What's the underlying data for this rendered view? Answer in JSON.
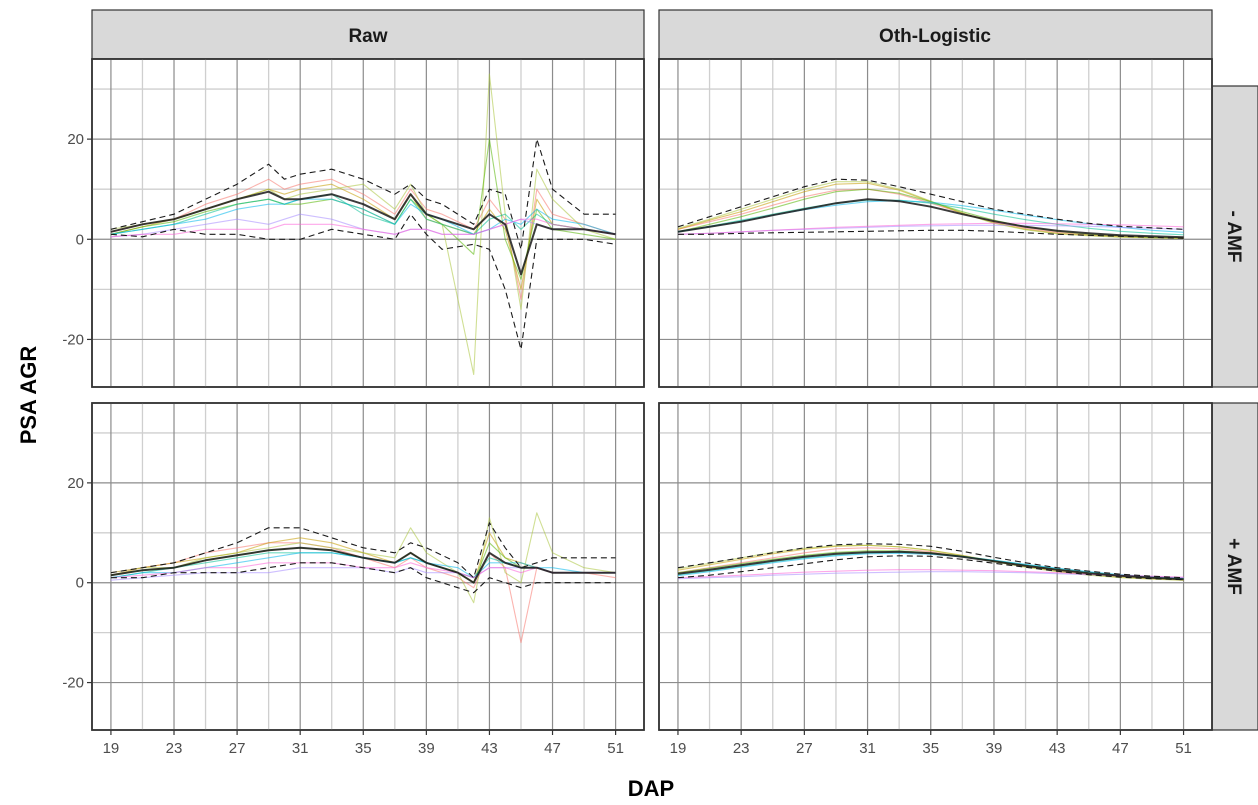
{
  "chart_data": {
    "type": "line",
    "facet_columns": [
      "Raw",
      "Oth-Logistic"
    ],
    "facet_rows": [
      "- AMF",
      "+ AMF"
    ],
    "xlabel": "DAP",
    "ylabel": "PSA AGR",
    "x_ticks": [
      19,
      23,
      27,
      31,
      35,
      39,
      43,
      47,
      51
    ],
    "y_ticks": [
      -20,
      0,
      20
    ],
    "xlim": [
      17.8,
      52.8
    ],
    "ylim": [
      -29.5,
      36
    ],
    "grid": true,
    "legend": "none",
    "colors": {
      "strip_fill": "#d9d9d9",
      "mean_line": "#1a1a1a",
      "envelope": "#1a1a1a",
      "series_palette": [
        "#f8766d",
        "#c49a00",
        "#53b400",
        "#00c094",
        "#00b6eb",
        "#a58aff",
        "#fb61d7",
        "#aac43c"
      ]
    },
    "panels": [
      {
        "col": "Raw",
        "row": "- AMF",
        "x": [
          19,
          21,
          23,
          25,
          27,
          29,
          30,
          31,
          33,
          35,
          37,
          38,
          39,
          40,
          42,
          43,
          44,
          45,
          46,
          47,
          49,
          51
        ],
        "mean": [
          1.5,
          3,
          4,
          6,
          8,
          9.5,
          8,
          8,
          9,
          7,
          4,
          9,
          5,
          4,
          2,
          5,
          3,
          -7,
          3,
          2,
          2,
          1
        ],
        "upper": [
          2,
          3.5,
          5,
          8,
          11,
          15,
          12,
          13,
          14,
          12,
          9,
          11,
          8,
          7,
          3,
          10,
          9,
          -2,
          20,
          10,
          5,
          5
        ],
        "lower": [
          1,
          0.5,
          2,
          1,
          1,
          0,
          0,
          0,
          2,
          1,
          0,
          5,
          1,
          -2,
          -1,
          -2,
          -10,
          -22,
          0,
          0,
          0,
          -1
        ],
        "curves": [
          {
            "color": "#f8766d",
            "y": [
              1.5,
              3,
              4,
              7,
              9,
              12,
              10,
              11,
              12,
              9,
              5,
              10,
              6,
              5,
              2,
              8,
              4,
              -12,
              10,
              5,
              3,
              1
            ]
          },
          {
            "color": "#c49a00",
            "y": [
              1,
              2.5,
              4,
              6,
              8,
              10,
              9,
              10,
              11,
              8,
              4,
              9,
              4,
              3,
              1,
              6,
              2,
              -10,
              8,
              3,
              2,
              1
            ]
          },
          {
            "color": "#aac43c",
            "y": [
              2,
              3,
              4,
              6,
              8,
              10,
              8,
              9,
              10,
              11,
              6,
              11,
              5,
              3,
              -27,
              33,
              5,
              -14,
              14,
              8,
              2,
              0
            ]
          },
          {
            "color": "#53b400",
            "y": [
              1,
              2.5,
              3.5,
              5.5,
              7,
              8,
              7,
              7,
              8,
              6,
              3,
              8,
              5,
              3,
              -3,
              20,
              0,
              -8,
              6,
              2,
              1,
              0
            ]
          },
          {
            "color": "#00c094",
            "y": [
              1,
              2,
              3,
              5,
              7,
              8,
              7,
              8,
              9,
              5,
              3,
              8,
              4,
              3,
              1,
              4,
              5,
              2,
              5,
              3,
              2,
              1
            ]
          },
          {
            "color": "#00b6eb",
            "y": [
              1,
              2,
              3,
              4,
              6,
              7,
              7,
              8,
              8,
              6,
              3,
              7,
              5,
              4,
              1,
              2,
              4,
              3,
              6,
              4,
              3,
              1
            ]
          },
          {
            "color": "#a58aff",
            "y": [
              0.5,
              1,
              2,
              3,
              4,
              3,
              4,
              5,
              4,
              2,
              1,
              2,
              2,
              1,
              1,
              2,
              3,
              4,
              3,
              2,
              2,
              1
            ]
          },
          {
            "color": "#fb61d7",
            "y": [
              0.5,
              1,
              1,
              2,
              2,
              2,
              3,
              3,
              3,
              2,
              1,
              2,
              2,
              1,
              1,
              2,
              3,
              4,
              4,
              3,
              2,
              1
            ]
          }
        ]
      },
      {
        "col": "Oth-Logistic",
        "row": "- AMF",
        "x": [
          19,
          21,
          23,
          25,
          27,
          29,
          31,
          33,
          35,
          37,
          39,
          41,
          43,
          45,
          47,
          49,
          51
        ],
        "mean": [
          1.5,
          2.5,
          3.5,
          4.8,
          6,
          7.2,
          8,
          7.6,
          6.5,
          5,
          3.6,
          2.5,
          1.7,
          1.2,
          0.8,
          0.6,
          0.4
        ],
        "upper": [
          2.5,
          4.5,
          6.5,
          8.5,
          10.5,
          12,
          11.8,
          10.5,
          9,
          7.5,
          6,
          5,
          4,
          3.2,
          2.6,
          2.3,
          2
        ],
        "lower": [
          1,
          1,
          1.2,
          1.3,
          1.4,
          1.5,
          1.6,
          1.7,
          1.8,
          1.8,
          1.6,
          1.3,
          1,
          0.8,
          0.6,
          0.4,
          0.2
        ],
        "curves": [
          {
            "color": "#f8766d",
            "y": [
              2,
              3.5,
              5,
              6.8,
              8.5,
              9.8,
              10,
              9,
              7.2,
              5.2,
              3.5,
              2.2,
              1.4,
              0.9,
              0.6,
              0.4,
              0.3
            ]
          },
          {
            "color": "#c49a00",
            "y": [
              2,
              3.8,
              5.5,
              7.5,
              9.5,
              11,
              11.2,
              9.8,
              7.5,
              5.2,
              3.3,
              2,
              1.2,
              0.8,
              0.5,
              0.3,
              0.2
            ]
          },
          {
            "color": "#aac43c",
            "y": [
              2.2,
              4,
              6,
              8,
              10,
              11.5,
              11.5,
              10,
              7.6,
              5.2,
              3.2,
              1.9,
              1.1,
              0.7,
              0.4,
              0.3,
              0.2
            ]
          },
          {
            "color": "#53b400",
            "y": [
              1.5,
              3,
              4.5,
              6.2,
              8,
              9.5,
              10,
              9.2,
              7.5,
              5.5,
              3.8,
              2.5,
              1.6,
              1,
              0.7,
              0.4,
              0.3
            ]
          },
          {
            "color": "#00c094",
            "y": [
              1.5,
              2.6,
              3.8,
              5,
              6.2,
              7.2,
              7.8,
              7.8,
              7.2,
              6.2,
              5,
              3.9,
              3,
              2.2,
              1.6,
              1.2,
              0.9
            ]
          },
          {
            "color": "#00b6eb",
            "y": [
              1.5,
              2.5,
              3.6,
              4.8,
              5.9,
              6.8,
              7.5,
              7.7,
              7.4,
              6.7,
              5.8,
              4.8,
              3.9,
              3.1,
              2.4,
              1.8,
              1.4
            ]
          },
          {
            "color": "#a58aff",
            "y": [
              1,
              1.2,
              1.5,
              1.8,
              2,
              2.2,
              2.4,
              2.6,
              2.7,
              2.8,
              2.8,
              2.8,
              2.7,
              2.6,
              2.4,
              2.2,
              2
            ]
          },
          {
            "color": "#fb61d7",
            "y": [
              1,
              1.2,
              1.5,
              1.8,
              2.1,
              2.4,
              2.6,
              2.8,
              3,
              3.1,
              3.2,
              3.2,
              3.1,
              3,
              2.9,
              2.7,
              2.5
            ]
          }
        ]
      },
      {
        "col": "Raw",
        "row": "+ AMF",
        "x": [
          19,
          21,
          23,
          25,
          27,
          29,
          31,
          33,
          35,
          37,
          38,
          39,
          41,
          42,
          43,
          44,
          45,
          46,
          47,
          49,
          51
        ],
        "mean": [
          1.5,
          2.5,
          3,
          4.5,
          5.5,
          6.5,
          7,
          6.5,
          5,
          4,
          6,
          4,
          2,
          0,
          6,
          4,
          3,
          3,
          2,
          2,
          2
        ],
        "upper": [
          2,
          3,
          4,
          6,
          8,
          11,
          11,
          9,
          7,
          6,
          8,
          7,
          4,
          1,
          12,
          7,
          3,
          4,
          5,
          5,
          5
        ],
        "lower": [
          1,
          1,
          2,
          2,
          2,
          3,
          4,
          4,
          3,
          2,
          3,
          1,
          -1,
          -2,
          1,
          0,
          -1,
          0,
          0,
          0,
          0
        ],
        "curves": [
          {
            "color": "#f8766d",
            "y": [
              2,
              3,
              4,
              6,
              7,
              8,
              8,
              7,
              5,
              3,
              5,
              3,
              1,
              -1,
              6,
              3,
              -12,
              3,
              2,
              2,
              1
            ]
          },
          {
            "color": "#c49a00",
            "y": [
              1.5,
              3,
              4,
              5,
              6,
              8,
              9,
              8,
              6,
              4,
              6,
              4,
              2,
              0,
              10,
              5,
              4,
              3,
              2,
              2,
              2
            ]
          },
          {
            "color": "#aac43c",
            "y": [
              2,
              3,
              3,
              5,
              6,
              7,
              8,
              7,
              6,
              5,
              11,
              6,
              2,
              -4,
              13,
              2,
              0,
              14,
              6,
              3,
              2
            ]
          },
          {
            "color": "#53b400",
            "y": [
              1.5,
              2.5,
              3,
              4.5,
              5.5,
              6.5,
              7,
              6.5,
              5,
              4,
              6,
              4,
              2,
              0,
              8,
              5,
              3,
              3,
              2,
              2,
              2
            ]
          },
          {
            "color": "#00c094",
            "y": [
              1,
              2,
              3,
              4,
              5,
              6,
              6,
              6,
              5,
              4,
              5,
              4,
              2,
              1,
              5,
              4,
              3,
              3,
              2,
              2,
              2
            ]
          },
          {
            "color": "#00b6eb",
            "y": [
              1,
              2,
              2,
              3,
              4,
              5,
              6,
              6,
              5,
              4,
              5,
              4,
              3,
              1,
              4,
              4,
              4,
              3,
              3,
              2,
              2
            ]
          },
          {
            "color": "#a58aff",
            "y": [
              0.5,
              1,
              1.5,
              2,
              2,
              2,
              3,
              3,
              3,
              2,
              3,
              2,
              2,
              1,
              3,
              3,
              3,
              3,
              2,
              2,
              2
            ]
          },
          {
            "color": "#fb61d7",
            "y": [
              1,
              1.5,
              2,
              3,
              3,
              4,
              4,
              4,
              3,
              3,
              4,
              3,
              2,
              1,
              3,
              3,
              2,
              3,
              2,
              2,
              2
            ]
          }
        ]
      },
      {
        "col": "Oth-Logistic",
        "row": "+ AMF",
        "x": [
          19,
          21,
          23,
          25,
          27,
          29,
          31,
          33,
          35,
          37,
          39,
          41,
          43,
          45,
          47,
          49,
          51
        ],
        "mean": [
          1.8,
          2.6,
          3.5,
          4.4,
          5.2,
          5.8,
          6.1,
          6.2,
          5.9,
          5.2,
          4.3,
          3.4,
          2.6,
          1.9,
          1.4,
          1,
          0.7
        ],
        "upper": [
          3,
          4,
          5,
          6,
          7,
          7.6,
          7.8,
          7.7,
          7.3,
          6.3,
          5.1,
          4,
          3,
          2.3,
          1.7,
          1.3,
          1
        ],
        "lower": [
          1,
          1.5,
          2.2,
          3,
          3.8,
          4.6,
          5.2,
          5.4,
          5.3,
          4.7,
          3.9,
          3.1,
          2.3,
          1.6,
          1.1,
          0.8,
          0.6
        ],
        "curves": [
          {
            "color": "#f8766d",
            "y": [
              2,
              3,
              4,
              5,
              6,
              6.8,
              7,
              6.8,
              6.2,
              5.3,
              4.3,
              3.3,
              2.5,
              1.8,
              1.3,
              0.9,
              0.6
            ]
          },
          {
            "color": "#c49a00",
            "y": [
              2.5,
              3.6,
              4.7,
              5.8,
              6.7,
              7.3,
              7.5,
              7.2,
              6.5,
              5.5,
              4.3,
              3.2,
              2.3,
              1.6,
              1.1,
              0.8,
              0.5
            ]
          },
          {
            "color": "#aac43c",
            "y": [
              2.8,
              3.9,
              5,
              6.1,
              6.9,
              7.4,
              7.5,
              7.2,
              6.5,
              5.4,
              4.2,
              3.1,
              2.2,
              1.5,
              1,
              0.7,
              0.5
            ]
          },
          {
            "color": "#53b400",
            "y": [
              2,
              2.9,
              3.8,
              4.7,
              5.5,
              6.1,
              6.4,
              6.4,
              6,
              5.3,
              4.4,
              3.5,
              2.6,
              1.9,
              1.4,
              1,
              0.7
            ]
          },
          {
            "color": "#00c094",
            "y": [
              1.6,
              2.4,
              3.3,
              4.2,
              5,
              5.6,
              6,
              6.1,
              5.9,
              5.3,
              4.5,
              3.6,
              2.8,
              2.1,
              1.5,
              1.1,
              0.8
            ]
          },
          {
            "color": "#00b6eb",
            "y": [
              1.4,
              2.2,
              3.1,
              4,
              4.8,
              5.4,
              5.8,
              5.9,
              5.7,
              5.2,
              4.5,
              3.7,
              2.9,
              2.2,
              1.6,
              1.2,
              0.9
            ]
          },
          {
            "color": "#a58aff",
            "y": [
              0.8,
              1,
              1.2,
              1.5,
              1.7,
              1.9,
              2,
              2.1,
              2.2,
              2.2,
              2.1,
              2,
              1.8,
              1.6,
              1.4,
              1.2,
              1
            ]
          },
          {
            "color": "#fb61d7",
            "y": [
              1,
              1.2,
              1.5,
              1.8,
              2.1,
              2.3,
              2.5,
              2.6,
              2.6,
              2.5,
              2.4,
              2.2,
              2,
              1.7,
              1.5,
              1.3,
              1.1
            ]
          }
        ]
      }
    ]
  }
}
